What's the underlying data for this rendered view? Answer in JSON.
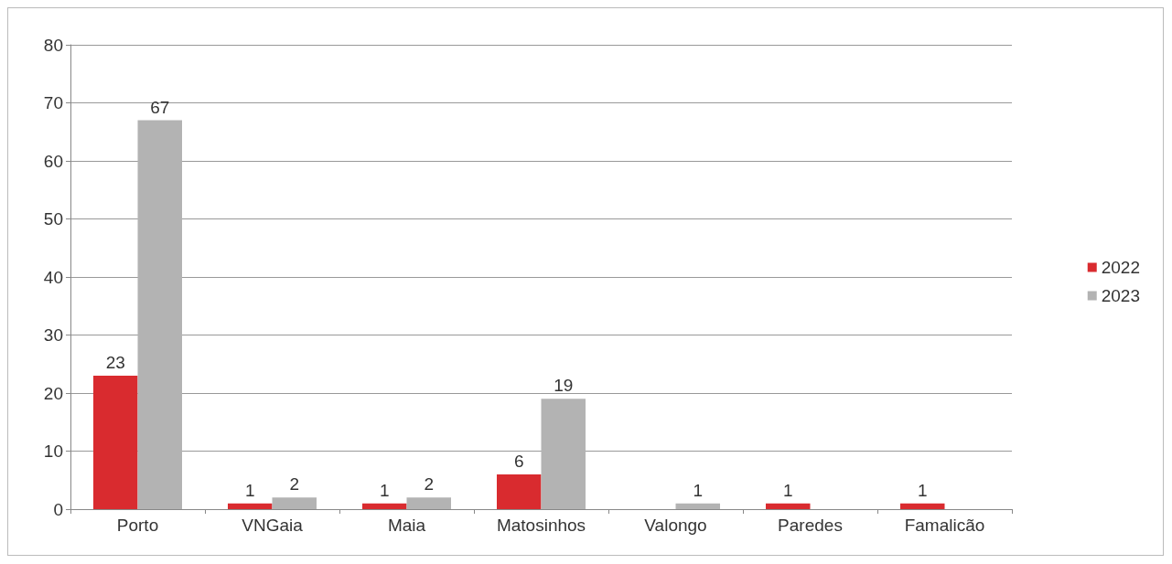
{
  "chart_data": {
    "type": "bar",
    "categories": [
      "Porto",
      "VNGaia",
      "Maia",
      "Matosinhos",
      "Valongo",
      "Paredes",
      "Famalicão"
    ],
    "series": [
      {
        "name": "2022",
        "color": "#d92b2f",
        "values": [
          23,
          1,
          1,
          6,
          null,
          1,
          1
        ]
      },
      {
        "name": "2023",
        "color": "#b3b3b3",
        "values": [
          67,
          2,
          2,
          19,
          1,
          null,
          null
        ]
      }
    ],
    "ylim": [
      0,
      80
    ],
    "yticks": [
      0,
      10,
      20,
      30,
      40,
      50,
      60,
      70,
      80
    ],
    "grid": "y",
    "legend": "right",
    "data_labels": true
  }
}
